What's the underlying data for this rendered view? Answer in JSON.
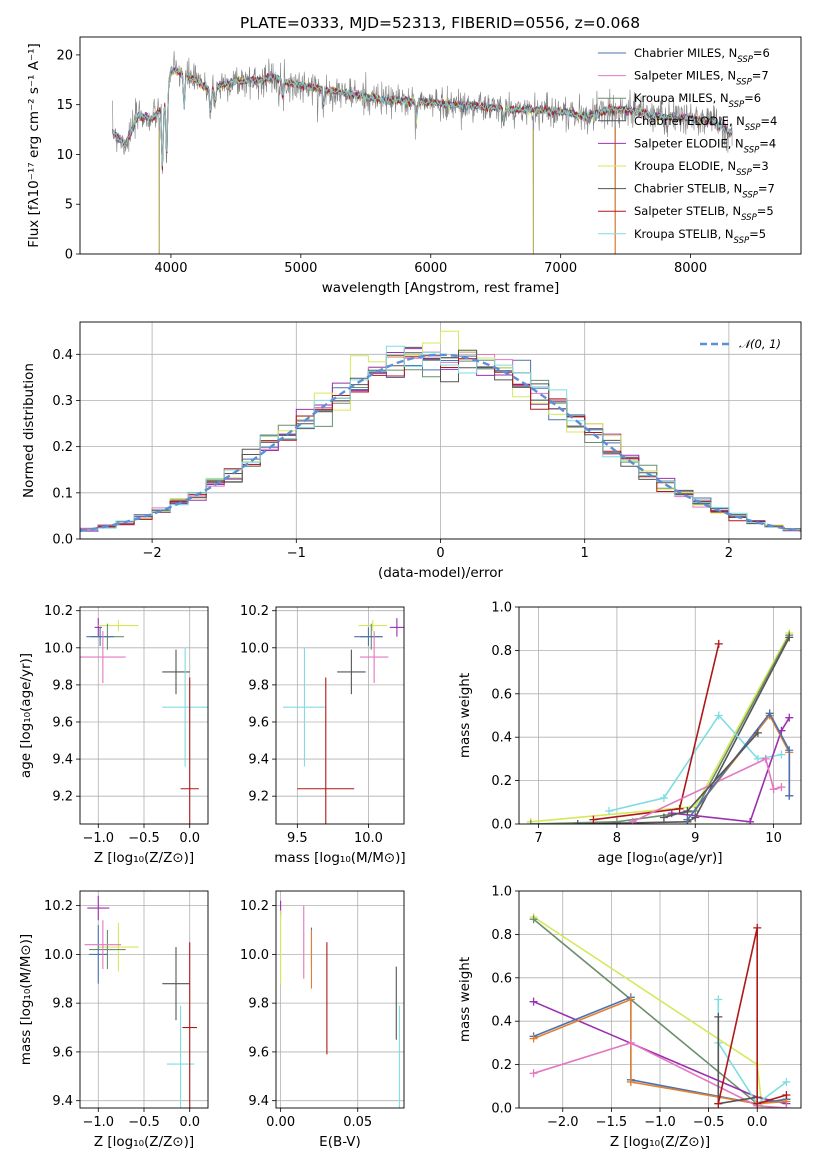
{
  "figure_title": "PLATE=0333, MJD=52313, FIBERID=0556, z=0.068",
  "colors": {
    "Chabrier MILES": "#4c72b0",
    "Salpeter MILES": "#e377c2",
    "Kroupa MILES": "#6b8e6b",
    "Chabrier ELODIE": "#555555",
    "Salpeter ELODIE": "#9b30b0",
    "Kroupa ELODIE": "#d6e85a",
    "Chabrier STELIB": "#555555",
    "Salpeter STELIB": "#b01818",
    "Kroupa STELIB": "#7fdce0",
    "Orange": "#e08030",
    "gauss": "#5b8fd6"
  },
  "chart_data": [
    {
      "id": "spectrum",
      "type": "line",
      "title": "PLATE=0333, MJD=52313, FIBERID=0556, z=0.068",
      "xlabel": "wavelength [Angstrom, rest frame]",
      "ylabel": "Flux [fλ10⁻¹⁷ erg cm⁻² s⁻¹ A⁻¹]",
      "xlim": [
        3300,
        8850
      ],
      "ylim": [
        0,
        21.8
      ],
      "xticks": [
        4000,
        5000,
        6000,
        7000,
        8000
      ],
      "yticks": [
        0,
        5,
        10,
        15,
        20
      ],
      "legend_position": "upper-right",
      "legend": [
        {
          "name": "Chabrier MILES",
          "nssp": "6"
        },
        {
          "name": "Salpeter MILES",
          "nssp": "7"
        },
        {
          "name": "Kroupa MILES",
          "nssp": "6"
        },
        {
          "name": "Chabrier ELODIE",
          "nssp": "4"
        },
        {
          "name": "Salpeter ELODIE",
          "nssp": "4"
        },
        {
          "name": "Kroupa ELODIE",
          "nssp": "3"
        },
        {
          "name": "Chabrier STELIB",
          "nssp": "7"
        },
        {
          "name": "Salpeter STELIB",
          "nssp": "5"
        },
        {
          "name": "Kroupa STELIB",
          "nssp": "5"
        }
      ],
      "continuum": [
        [
          3550,
          12.3
        ],
        [
          3650,
          11.0
        ],
        [
          3750,
          14.0
        ],
        [
          3850,
          13.5
        ],
        [
          3950,
          15.0
        ],
        [
          4000,
          18.5
        ],
        [
          4100,
          18.2
        ],
        [
          4200,
          17.3
        ],
        [
          4300,
          16.5
        ],
        [
          4400,
          17.0
        ],
        [
          4500,
          17.3
        ],
        [
          4700,
          17.5
        ],
        [
          4800,
          17.8
        ],
        [
          4900,
          17.2
        ],
        [
          5000,
          16.9
        ],
        [
          5200,
          16.5
        ],
        [
          5400,
          16.0
        ],
        [
          5600,
          15.5
        ],
        [
          5800,
          15.4
        ],
        [
          6000,
          15.2
        ],
        [
          6200,
          15.0
        ],
        [
          6400,
          14.8
        ],
        [
          6600,
          14.5
        ],
        [
          6800,
          14.5
        ],
        [
          7000,
          14.3
        ],
        [
          7200,
          13.8
        ],
        [
          7400,
          14.6
        ],
        [
          7600,
          14.3
        ],
        [
          7800,
          13.7
        ],
        [
          8000,
          13.6
        ],
        [
          8200,
          13.2
        ],
        [
          8300,
          12.2
        ]
      ],
      "absorption_lines": [
        [
          3934,
          8.0
        ],
        [
          3968,
          9.0
        ],
        [
          4102,
          14.5
        ],
        [
          4305,
          14.0
        ],
        [
          4340,
          15.0
        ],
        [
          4861,
          15.5
        ],
        [
          5175,
          14.8
        ],
        [
          5890,
          13.5
        ],
        [
          6563,
          13.0
        ]
      ],
      "drops_to_zero": [
        3910,
        6790,
        7420
      ]
    },
    {
      "id": "residuals",
      "type": "line",
      "xlabel": "(data-model)/error",
      "ylabel": "Normed distribution",
      "xlim": [
        -2.5,
        2.5
      ],
      "ylim": [
        0,
        0.47
      ],
      "xticks": [
        -2,
        -1,
        0,
        1,
        2
      ],
      "yticks": [
        0.0,
        0.1,
        0.2,
        0.3,
        0.4
      ],
      "legend_label": "𝒩(0, 1)",
      "legend_position": "upper-right",
      "grid": true,
      "gaussian": {
        "mean": 0,
        "sigma": 1
      }
    },
    {
      "id": "age-vs-Z",
      "type": "scatter",
      "xlabel": "Z [log₁₀(Z/Z⊙)]",
      "ylabel": "age  [log₁₀(age/yr)]",
      "xlim": [
        -1.2,
        0.2
      ],
      "ylim": [
        9.05,
        10.22
      ],
      "xticks": [
        -1.0,
        -0.5,
        0.0
      ],
      "yticks": [
        9.2,
        9.4,
        9.6,
        9.8,
        10.0,
        10.2
      ],
      "points": [
        {
          "model": "Salpeter ELODIE",
          "x": -1.0,
          "xerr": 0.04,
          "y": 10.11,
          "yerr": 0.05
        },
        {
          "model": "Kroupa ELODIE",
          "x": -0.78,
          "xerr": 0.22,
          "y": 10.12,
          "yerr": 0.03
        },
        {
          "model": "Kroupa MILES",
          "x": -0.9,
          "xerr": 0.18,
          "y": 10.06,
          "yerr": 0.07
        },
        {
          "model": "Chabrier MILES",
          "x": -0.98,
          "xerr": 0.15,
          "y": 10.06,
          "yerr": 0.05
        },
        {
          "model": "Salpeter MILES",
          "x": -0.95,
          "xerr": 0.25,
          "y": 9.95,
          "yerr": 0.14
        },
        {
          "model": "Chabrier ELODIE",
          "x": -0.15,
          "xerr": 0.15,
          "y": 9.87,
          "yerr": 0.12
        },
        {
          "model": "Kroupa STELIB",
          "x": -0.05,
          "xerr": 0.25,
          "y": 9.68,
          "yerr": 0.32
        },
        {
          "model": "Salpeter STELIB",
          "x": 0.0,
          "xerr": 0.1,
          "y": 9.24,
          "yerr": 0.6
        }
      ]
    },
    {
      "id": "age-vs-mass",
      "type": "scatter",
      "xlabel": "mass [log₁₀(M/M⊙)]",
      "ylabel": "",
      "xlim": [
        9.35,
        10.25
      ],
      "ylim": [
        9.05,
        10.22
      ],
      "xticks": [
        9.5,
        10.0
      ],
      "yticks": [
        9.2,
        9.4,
        9.6,
        9.8,
        10.0,
        10.2
      ],
      "points": [
        {
          "model": "Salpeter ELODIE",
          "x": 10.2,
          "xerr": 0.05,
          "y": 10.11,
          "yerr": 0.05
        },
        {
          "model": "Kroupa ELODIE",
          "x": 10.03,
          "xerr": 0.1,
          "y": 10.12,
          "yerr": 0.03
        },
        {
          "model": "Kroupa MILES",
          "x": 10.02,
          "xerr": 0.08,
          "y": 10.06,
          "yerr": 0.07
        },
        {
          "model": "Chabrier MILES",
          "x": 10.0,
          "xerr": 0.1,
          "y": 10.06,
          "yerr": 0.05
        },
        {
          "model": "Salpeter MILES",
          "x": 10.04,
          "xerr": 0.1,
          "y": 9.95,
          "yerr": 0.14
        },
        {
          "model": "Chabrier ELODIE",
          "x": 9.88,
          "xerr": 0.1,
          "y": 9.87,
          "yerr": 0.12
        },
        {
          "model": "Kroupa STELIB",
          "x": 9.55,
          "xerr": 0.15,
          "y": 9.68,
          "yerr": 0.32
        },
        {
          "model": "Salpeter STELIB",
          "x": 9.7,
          "xerr": 0.2,
          "y": 9.24,
          "yerr": 0.6
        }
      ]
    },
    {
      "id": "weight-vs-age",
      "type": "line",
      "xlabel": "age  [log₁₀(age/yr)]",
      "ylabel": "mass weight",
      "xlim": [
        6.75,
        10.35
      ],
      "ylim": [
        0,
        1.0
      ],
      "xticks": [
        7,
        8,
        9,
        10
      ],
      "yticks": [
        0.0,
        0.2,
        0.4,
        0.6,
        0.8,
        1.0
      ],
      "grid": true,
      "series": [
        {
          "model": "Kroupa ELODIE",
          "x": [
            6.9,
            9.0,
            10.2
          ],
          "y": [
            0.01,
            0.08,
            0.88
          ]
        },
        {
          "model": "Kroupa MILES",
          "x": [
            6.9,
            8.0,
            9.0,
            10.2
          ],
          "y": [
            0.0,
            0.01,
            0.06,
            0.87
          ]
        },
        {
          "model": "Chabrier ELODIE",
          "x": [
            7.5,
            8.9,
            9.0,
            10.2
          ],
          "y": [
            0.0,
            0.01,
            0.03,
            0.86
          ]
        },
        {
          "model": "Kroupa STELIB",
          "x": [
            7.9,
            8.6,
            9.3,
            9.8,
            10.1
          ],
          "y": [
            0.06,
            0.12,
            0.5,
            0.3,
            0.32
          ]
        },
        {
          "model": "Salpeter STELIB",
          "x": [
            7.7,
            8.8,
            9.3
          ],
          "y": [
            0.02,
            0.07,
            0.83
          ]
        },
        {
          "model": "Salpeter ELODIE",
          "x": [
            8.7,
            9.7,
            10.1,
            10.2
          ],
          "y": [
            0.05,
            0.01,
            0.43,
            0.49
          ]
        },
        {
          "model": "Salpeter MILES",
          "x": [
            8.2,
            9.9,
            10.0,
            10.1
          ],
          "y": [
            0.01,
            0.3,
            0.16,
            0.17
          ]
        },
        {
          "model": "Orange",
          "x": [
            8.9,
            9.95,
            10.2,
            10.2
          ],
          "y": [
            0.02,
            0.5,
            0.33,
            0.13
          ]
        },
        {
          "model": "Chabrier MILES",
          "x": [
            8.9,
            9.95,
            10.2,
            10.2
          ],
          "y": [
            0.02,
            0.51,
            0.34,
            0.13
          ]
        },
        {
          "model": "Chabrier STELIB",
          "x": [
            8.6,
            8.9,
            9.8
          ],
          "y": [
            0.03,
            0.06,
            0.42
          ]
        }
      ]
    },
    {
      "id": "mass-vs-Z",
      "type": "scatter",
      "xlabel": "Z [log₁₀(Z/Z⊙)]",
      "ylabel": "mass [log₁₀(M/M⊙)]",
      "xlim": [
        -1.2,
        0.2
      ],
      "ylim": [
        9.37,
        10.26
      ],
      "xticks": [
        -1.0,
        -0.5,
        0.0
      ],
      "yticks": [
        9.4,
        9.6,
        9.8,
        10.0,
        10.2
      ],
      "points": [
        {
          "model": "Salpeter ELODIE",
          "x": -1.0,
          "xerr": 0.12,
          "y": 10.19,
          "yerr": 0.05
        },
        {
          "model": "Kroupa ELODIE",
          "x": -0.78,
          "xerr": 0.22,
          "y": 10.03,
          "yerr": 0.1
        },
        {
          "model": "Kroupa MILES",
          "x": -0.9,
          "xerr": 0.2,
          "y": 10.02,
          "yerr": 0.08
        },
        {
          "model": "Chabrier MILES",
          "x": -1.0,
          "xerr": 0.1,
          "y": 10.0,
          "yerr": 0.12
        },
        {
          "model": "Salpeter MILES",
          "x": -0.95,
          "xerr": 0.2,
          "y": 10.04,
          "yerr": 0.1
        },
        {
          "model": "Chabrier ELODIE",
          "x": -0.15,
          "xerr": 0.15,
          "y": 9.88,
          "yerr": 0.15
        },
        {
          "model": "Kroupa STELIB",
          "x": -0.1,
          "xerr": 0.15,
          "y": 9.55,
          "yerr": 0.24
        },
        {
          "model": "Salpeter STELIB",
          "x": 0.0,
          "xerr": 0.08,
          "y": 9.7,
          "yerr": 0.35
        }
      ]
    },
    {
      "id": "mass-vs-EBV",
      "type": "scatter",
      "xlabel": "E(B-V)",
      "ylabel": "",
      "xlim": [
        -0.003,
        0.08
      ],
      "ylim": [
        9.37,
        10.26
      ],
      "xticks": [
        0.0,
        0.05
      ],
      "yticks": [
        9.4,
        9.6,
        9.8,
        10.0,
        10.2
      ],
      "points": [
        {
          "model": "Salpeter ELODIE",
          "x": 0.0,
          "y": 10.19,
          "yerr": 0.03
        },
        {
          "model": "Kroupa ELODIE",
          "x": 0.0,
          "y": 10.03,
          "yerr": 0.15
        },
        {
          "model": "Salpeter MILES",
          "x": 0.015,
          "y": 10.05,
          "yerr": 0.15
        },
        {
          "model": "Chabrier MILES",
          "x": 0.02,
          "y": 10.03,
          "yerr": 0.08
        },
        {
          "model": "Orange",
          "x": 0.02,
          "y": 9.98,
          "yerr": 0.12
        },
        {
          "model": "Salpeter STELIB",
          "x": 0.03,
          "y": 9.82,
          "yerr": 0.23
        },
        {
          "model": "Chabrier ELODIE",
          "x": 0.075,
          "y": 9.8,
          "yerr": 0.15
        },
        {
          "model": "Kroupa STELIB",
          "x": 0.077,
          "y": 9.58,
          "yerr": 0.21
        }
      ]
    },
    {
      "id": "weight-vs-Z",
      "type": "line",
      "xlabel": "Z [log₁₀(Z/Z⊙)]",
      "ylabel": "mass weight",
      "xlim": [
        -2.45,
        0.45
      ],
      "ylim": [
        0,
        1.0
      ],
      "xticks": [
        -2.0,
        -1.5,
        -1.0,
        -0.5,
        0.0
      ],
      "yticks": [
        0.0,
        0.2,
        0.4,
        0.6,
        0.8,
        1.0
      ],
      "grid": true,
      "series": [
        {
          "model": "Kroupa ELODIE",
          "x": [
            -2.3,
            0.0,
            0.05
          ],
          "y": [
            0.88,
            0.2,
            0.0
          ]
        },
        {
          "model": "Kroupa MILES",
          "x": [
            -2.3,
            0.0,
            0.3
          ],
          "y": [
            0.87,
            0.02,
            0.04
          ]
        },
        {
          "model": "Salpeter ELODIE",
          "x": [
            -2.3,
            0.0,
            0.3
          ],
          "y": [
            0.49,
            0.05,
            0.02
          ]
        },
        {
          "model": "Chabrier MILES",
          "x": [
            -2.3,
            -1.3,
            -1.3,
            0.0,
            0.3
          ],
          "y": [
            0.33,
            0.51,
            0.13,
            0.02,
            0.04
          ]
        },
        {
          "model": "Orange",
          "x": [
            -2.3,
            -1.3,
            -1.3,
            0.0,
            0.3
          ],
          "y": [
            0.32,
            0.5,
            0.12,
            0.02,
            0.03
          ]
        },
        {
          "model": "Salpeter MILES",
          "x": [
            -2.3,
            -1.3,
            0.0,
            0.3
          ],
          "y": [
            0.16,
            0.3,
            0.01,
            0.0
          ]
        },
        {
          "model": "Kroupa STELIB",
          "x": [
            -0.4,
            -0.4,
            0.0,
            0.3
          ],
          "y": [
            0.5,
            0.3,
            0.02,
            0.12
          ]
        },
        {
          "model": "Chabrier ELODIE",
          "x": [
            -0.4,
            -0.4,
            0.0
          ],
          "y": [
            0.42,
            0.02,
            0.05
          ]
        },
        {
          "model": "Salpeter STELIB",
          "x": [
            -0.4,
            0.0,
            0.0,
            0.3
          ],
          "y": [
            0.02,
            0.83,
            0.02,
            0.06
          ]
        }
      ]
    }
  ]
}
